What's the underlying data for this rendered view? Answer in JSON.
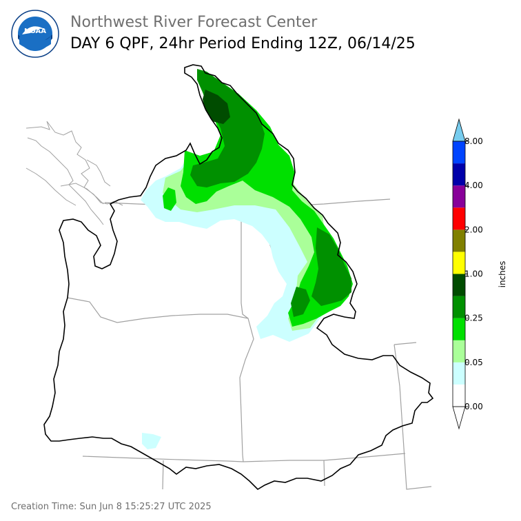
{
  "header": {
    "agency": "Northwest River Forecast Center",
    "product": "DAY 6 QPF, 24hr Period Ending 12Z, 06/14/25"
  },
  "logo": {
    "text": "NOAA",
    "icon": "noaa-logo"
  },
  "footer": {
    "creation": "Creation Time: Sun Jun 8 15:25:27 UTC 2025"
  },
  "legend": {
    "unit_label": "inches",
    "tick_labels": [
      "0.00",
      "0.05",
      "0.25",
      "1.00",
      "2.00",
      "4.00",
      "8.00"
    ],
    "bins": [
      {
        "color": "#ffffff"
      },
      {
        "color": "#ccffff"
      },
      {
        "color": "#aaff99"
      },
      {
        "color": "#00e000"
      },
      {
        "color": "#009000"
      },
      {
        "color": "#004c00"
      },
      {
        "color": "#ffff00"
      },
      {
        "color": "#808000"
      },
      {
        "color": "#ff0000"
      },
      {
        "color": "#880099"
      },
      {
        "color": "#0000aa"
      },
      {
        "color": "#0044ff"
      }
    ],
    "over_color": "#77ccee",
    "under_color": "#ffffff"
  },
  "colors": {
    "basin_outline": "#000000",
    "state_lines": "#a0a0a0",
    "coast_lines": "#a0a0a0"
  }
}
